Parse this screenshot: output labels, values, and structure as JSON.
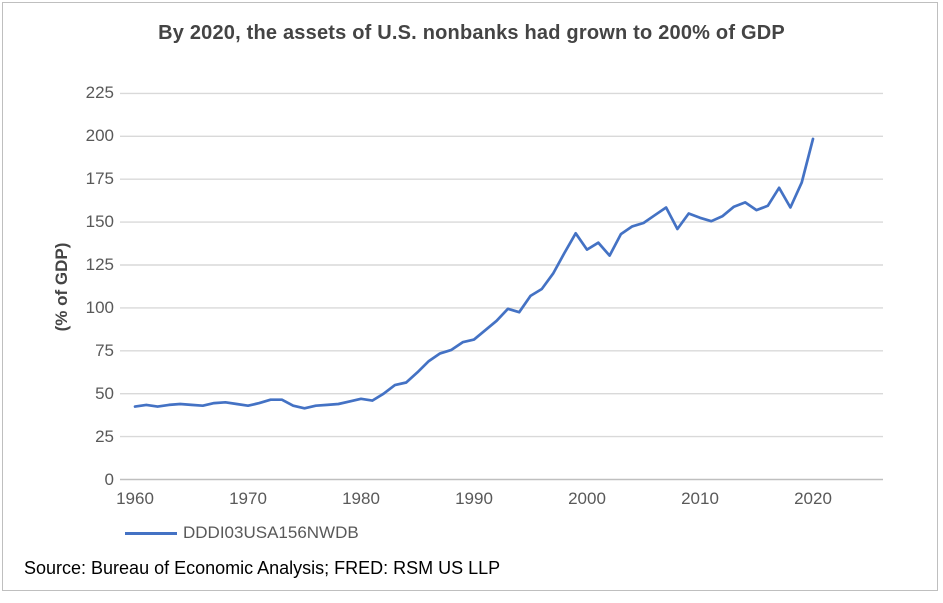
{
  "chart_data": {
    "type": "line",
    "title": "By 2020, the assets of U.S. nonbanks had grown to 200% of GDP",
    "ylabel": "(% of GDP)",
    "xlabel": "",
    "grid": "horizontal",
    "legend_position": "bottom-left",
    "ylim": [
      0,
      225
    ],
    "xlim": [
      1960,
      2026
    ],
    "yticks": [
      0,
      25,
      50,
      75,
      100,
      125,
      150,
      175,
      200,
      225
    ],
    "xticks": [
      1960,
      1970,
      1980,
      1990,
      2000,
      2010,
      2020
    ],
    "series": [
      {
        "name": "DDDI03USA156NWDB",
        "x": [
          1960,
          1961,
          1962,
          1963,
          1964,
          1965,
          1966,
          1967,
          1968,
          1969,
          1970,
          1971,
          1972,
          1973,
          1974,
          1975,
          1976,
          1977,
          1978,
          1979,
          1980,
          1981,
          1982,
          1983,
          1984,
          1985,
          1986,
          1987,
          1988,
          1989,
          1990,
          1991,
          1992,
          1993,
          1994,
          1995,
          1996,
          1997,
          1998,
          1999,
          2000,
          2001,
          2002,
          2003,
          2004,
          2005,
          2006,
          2007,
          2008,
          2009,
          2010,
          2011,
          2012,
          2013,
          2014,
          2015,
          2016,
          2017,
          2018,
          2019,
          2020
        ],
        "values": [
          42.5,
          43.5,
          42.5,
          43.5,
          44,
          43.5,
          43,
          44.5,
          45,
          44,
          43,
          44.5,
          46.5,
          46.5,
          43,
          41.5,
          43,
          43.5,
          44,
          45.5,
          47,
          46,
          50,
          55,
          56.5,
          62.5,
          69,
          73.5,
          75.5,
          80,
          81.5,
          87,
          92.5,
          99.5,
          97.5,
          107,
          111,
          120,
          132,
          143.5,
          134,
          138,
          130.5,
          143,
          147.5,
          149.5,
          154,
          158.5,
          146,
          155,
          152.5,
          150.5,
          153.5,
          159,
          161.5,
          157,
          159.5,
          170,
          158.5,
          173,
          198.5
        ]
      }
    ],
    "colors": {
      "line": "#4472c4",
      "gridline": "#d9d9d9",
      "axis": "#bfbfbf",
      "tick_label": "#595959",
      "title": "#444444",
      "border": "#bfbfbf"
    }
  },
  "footer": {
    "source": "Source: Bureau of Economic Analysis; FRED: RSM US LLP"
  }
}
